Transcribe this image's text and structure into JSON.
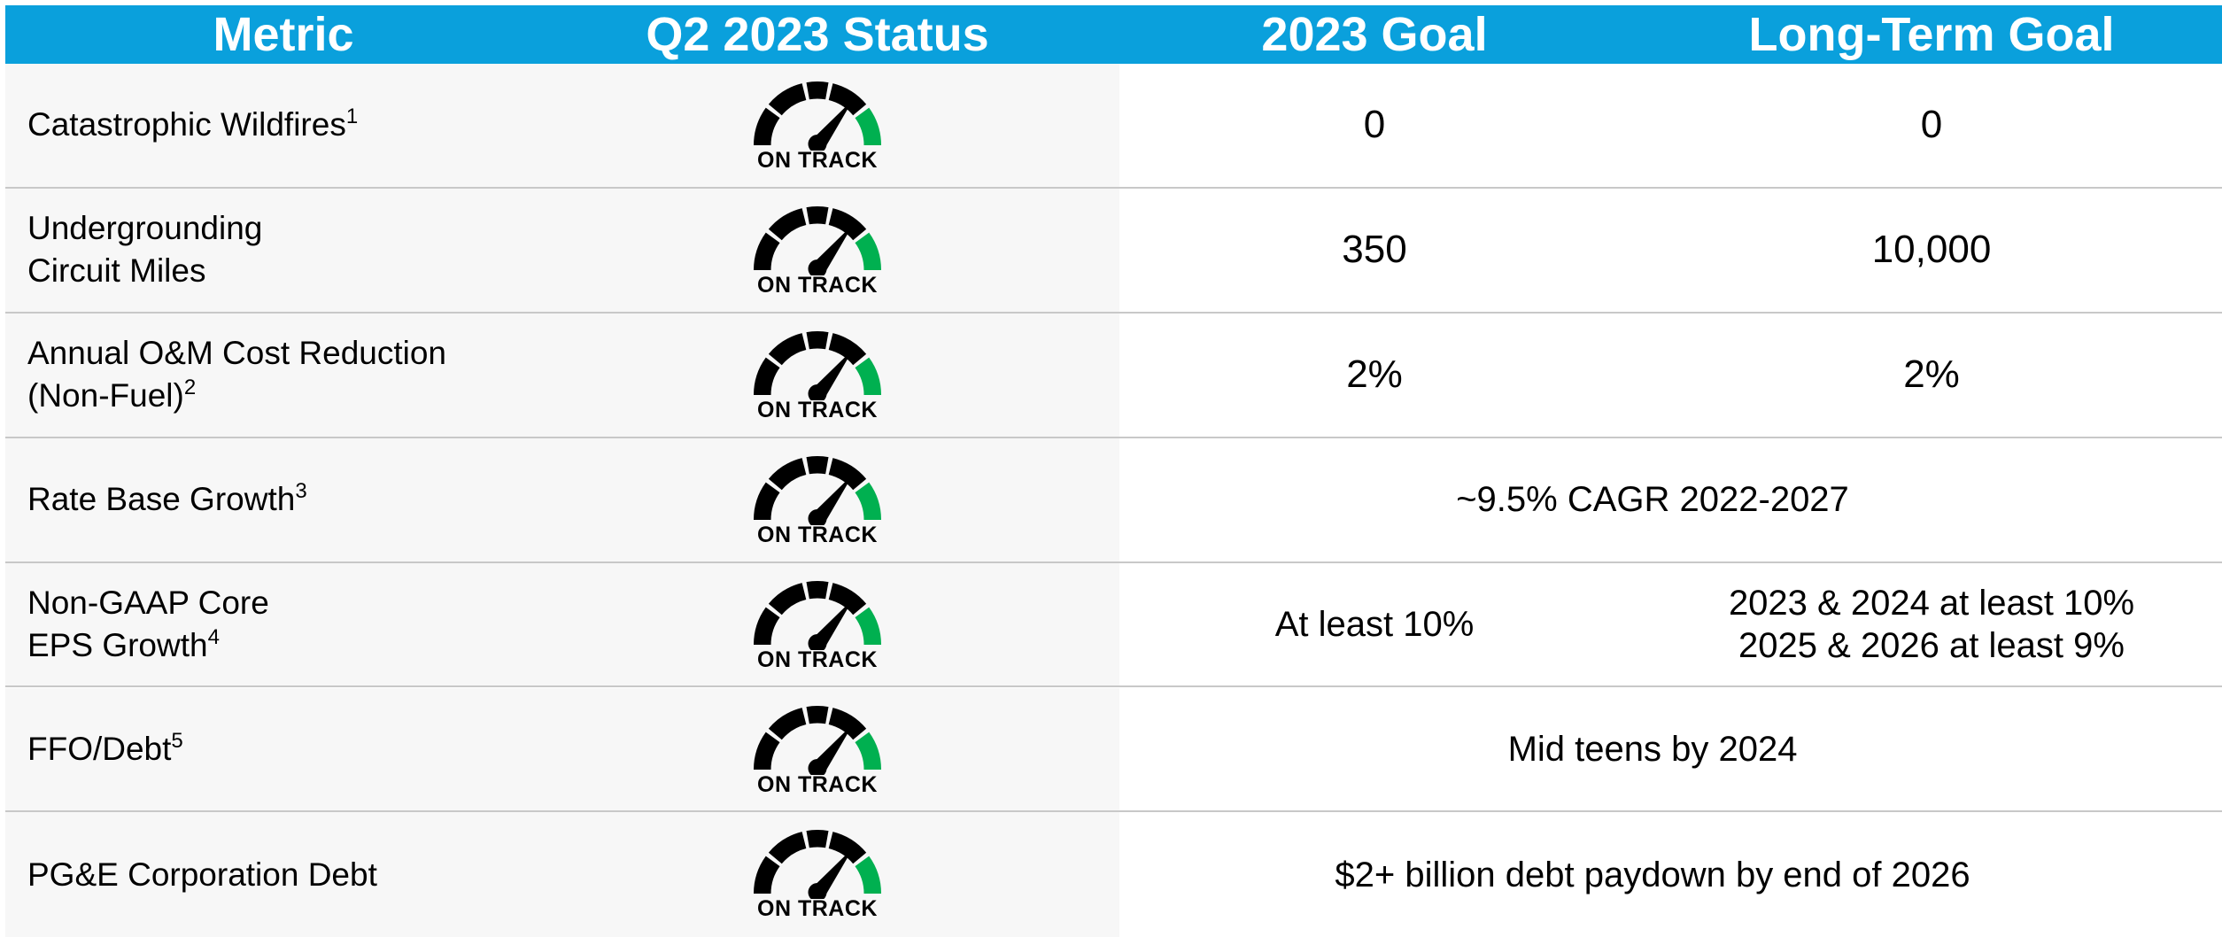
{
  "header": [
    "Metric",
    "Q2 2023 Status",
    "2023 Goal",
    "Long-Term Goal"
  ],
  "rows": [
    {
      "metric": [
        "Catastrophic Wildfires"
      ],
      "note": "1",
      "status": "ON TRACK",
      "goal_2023": [
        "0"
      ],
      "long_term_goal": [
        "0"
      ]
    },
    {
      "metric": [
        "Undergrounding",
        "Circuit Miles"
      ],
      "status": "ON TRACK",
      "goal_2023": [
        "350"
      ],
      "long_term_goal": [
        "10,000"
      ]
    },
    {
      "metric": [
        "Annual O&M Cost Reduction",
        "(Non-Fuel)"
      ],
      "note": "2",
      "status": "ON TRACK",
      "goal_2023": [
        "2%"
      ],
      "long_term_goal": [
        "2%"
      ]
    },
    {
      "metric": [
        "Rate Base Growth"
      ],
      "note": "3",
      "status": "ON TRACK",
      "combined_goal": [
        "~9.5% CAGR 2022-2027"
      ]
    },
    {
      "metric": [
        "Non-GAAP Core",
        "EPS Growth"
      ],
      "note": "4",
      "status": "ON TRACK",
      "goal_2023": [
        "At least 10%"
      ],
      "long_term_goal": [
        "2023 & 2024 at least 10%",
        "2025 & 2026 at least 9%"
      ]
    },
    {
      "metric": [
        "FFO/Debt"
      ],
      "note": "5",
      "status": "ON TRACK",
      "combined_goal": [
        "Mid teens by 2024"
      ]
    },
    {
      "metric": [
        "PG&E Corporation Debt"
      ],
      "status": "ON TRACK",
      "combined_goal": [
        "$2+ billion debt paydown by end of 2026"
      ]
    }
  ]
}
